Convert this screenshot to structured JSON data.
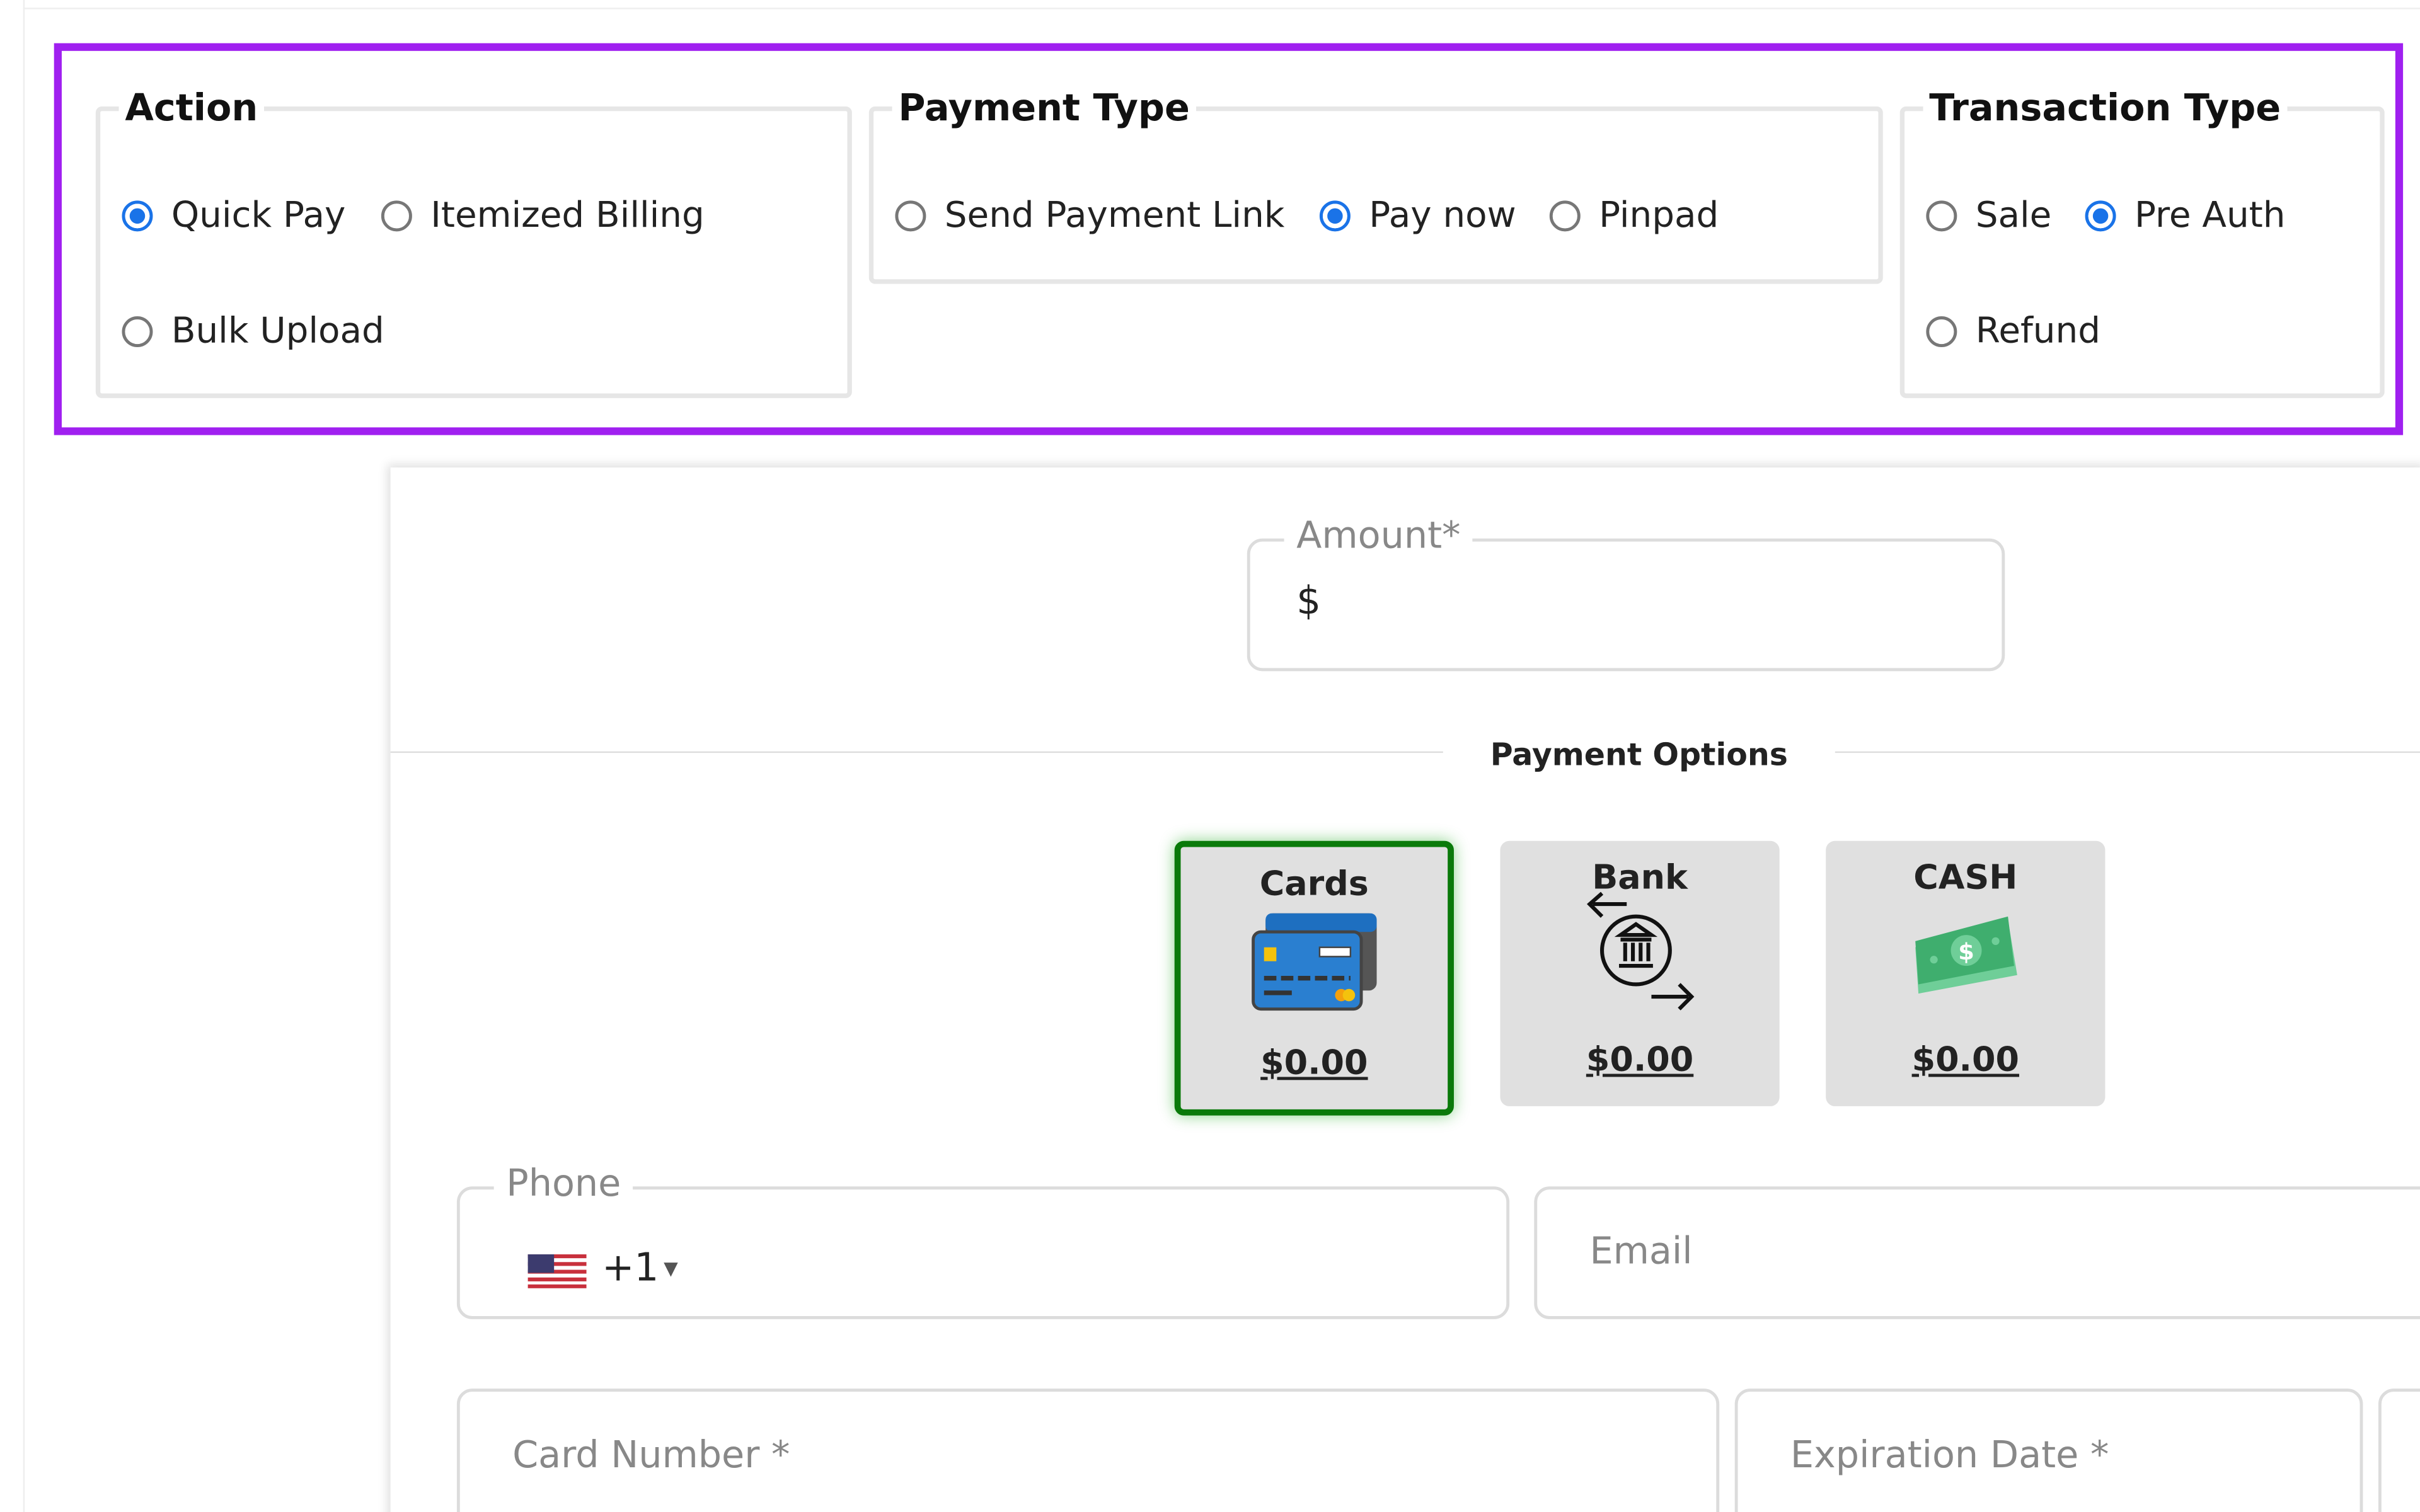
{
  "action": {
    "legend": "Action",
    "options": [
      "Quick Pay",
      "Itemized Billing",
      "Bulk Upload"
    ],
    "selected": "Quick Pay"
  },
  "payment_type": {
    "legend": "Payment Type",
    "options": [
      "Send Payment Link",
      "Pay now",
      "Pinpad"
    ],
    "selected": "Pay now"
  },
  "transaction_type": {
    "legend": "Transaction Type",
    "options": [
      "Sale",
      "Pre Auth",
      "Refund"
    ],
    "selected": "Pre Auth"
  },
  "amount": {
    "label": "Amount*",
    "prefix": "$",
    "value": ""
  },
  "payment_options": {
    "title": "Payment Options",
    "tiles": [
      {
        "name": "Cards",
        "amount": "$0.00",
        "icon": "credit-card-icon",
        "selected": true
      },
      {
        "name": "Bank",
        "amount": "$0.00",
        "icon": "bank-transfer-icon",
        "selected": false
      },
      {
        "name": "CASH",
        "amount": "$0.00",
        "icon": "cash-icon",
        "selected": false
      }
    ]
  },
  "phone": {
    "label": "Phone",
    "country_code": "+1",
    "flag": "us-flag-icon"
  },
  "email": {
    "placeholder": "Email"
  },
  "card_number": {
    "placeholder": "Card Number *"
  },
  "expiration": {
    "placeholder": "Expiration Date *"
  },
  "colors": {
    "highlight": "#a020f0",
    "radio_selected": "#1a73e8",
    "selected_tile_border": "#0a7a0a"
  }
}
